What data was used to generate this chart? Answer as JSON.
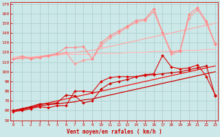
{
  "x": [
    0,
    1,
    2,
    3,
    4,
    5,
    6,
    7,
    8,
    9,
    10,
    11,
    12,
    13,
    14,
    15,
    16,
    17,
    18,
    19,
    20,
    21,
    22,
    23
  ],
  "lines": [
    {
      "y": [
        59,
        60,
        62,
        64,
        63,
        65,
        65,
        80,
        80,
        79,
        90,
        94,
        95,
        95,
        95,
        97,
        98,
        117,
        105,
        103,
        104,
        107,
        95,
        76
      ],
      "color": "#dd0000",
      "marker": "D",
      "markersize": 2.0,
      "linewidth": 0.8,
      "zorder": 5
    },
    {
      "y": [
        59,
        61,
        63,
        65,
        66,
        67,
        68,
        69,
        71,
        72,
        74,
        76,
        78,
        80,
        82,
        84,
        86,
        88,
        90,
        92,
        94,
        96,
        98,
        100
      ],
      "color": "#cc0000",
      "marker": null,
      "markersize": 0,
      "linewidth": 0.9,
      "zorder": 3
    },
    {
      "y": [
        60,
        62,
        64,
        66,
        68,
        70,
        72,
        74,
        76,
        78,
        80,
        82,
        84,
        86,
        88,
        90,
        92,
        94,
        96,
        98,
        100,
        102,
        104,
        106
      ],
      "color": "#ee1111",
      "marker": null,
      "markersize": 0,
      "linewidth": 0.9,
      "zorder": 3
    },
    {
      "y": [
        60,
        62,
        64,
        67,
        67,
        68,
        76,
        75,
        68,
        70,
        82,
        88,
        90,
        92,
        95,
        96,
        97,
        98,
        99,
        100,
        102,
        104,
        106,
        75
      ],
      "color": "#cc0000",
      "marker": "D",
      "markersize": 2.0,
      "linewidth": 0.8,
      "zorder": 4
    },
    {
      "y": [
        113,
        116,
        113,
        115,
        117,
        119,
        125,
        125,
        126,
        113,
        130,
        137,
        142,
        147,
        153,
        154,
        165,
        141,
        120,
        122,
        159,
        166,
        152,
        129
      ],
      "color": "#ff8888",
      "marker": "D",
      "markersize": 2.0,
      "linewidth": 0.8,
      "zorder": 5
    },
    {
      "y": [
        113,
        114,
        114,
        115,
        116,
        118,
        120,
        108,
        112,
        113,
        127,
        135,
        140,
        146,
        151,
        153,
        162,
        140,
        118,
        121,
        155,
        164,
        150,
        128
      ],
      "color": "#ff9999",
      "marker": "D",
      "markersize": 2.0,
      "linewidth": 0.8,
      "zorder": 4
    },
    {
      "y": [
        115,
        116,
        115,
        115,
        116,
        117,
        118,
        118,
        118,
        118,
        119,
        119,
        119,
        120,
        120,
        120,
        121,
        121,
        121,
        122,
        122,
        122,
        123,
        123
      ],
      "color": "#ffbbbb",
      "marker": null,
      "markersize": 0,
      "linewidth": 0.9,
      "zorder": 2
    },
    {
      "y": [
        113,
        114,
        115,
        116,
        117,
        118,
        119,
        120,
        121,
        122,
        124,
        126,
        128,
        130,
        132,
        134,
        136,
        138,
        140,
        142,
        144,
        146,
        148,
        150
      ],
      "color": "#ffaaaa",
      "marker": null,
      "markersize": 0,
      "linewidth": 0.9,
      "zorder": 2
    }
  ],
  "xlim": [
    -0.3,
    23.3
  ],
  "ylim": [
    50,
    172
  ],
  "yticks": [
    50,
    60,
    70,
    80,
    90,
    100,
    110,
    120,
    130,
    140,
    150,
    160,
    170
  ],
  "xticks": [
    0,
    1,
    2,
    3,
    4,
    5,
    6,
    7,
    8,
    9,
    10,
    11,
    12,
    13,
    14,
    15,
    16,
    17,
    18,
    19,
    20,
    21,
    22,
    23
  ],
  "xlabel": "Vent moyen/en rafales ( km/h )",
  "xlabel_color": "#cc0000",
  "bg_color": "#cce8e8",
  "grid_color": "#aacccc",
  "tick_color": "#cc0000",
  "label_color": "#cc0000"
}
